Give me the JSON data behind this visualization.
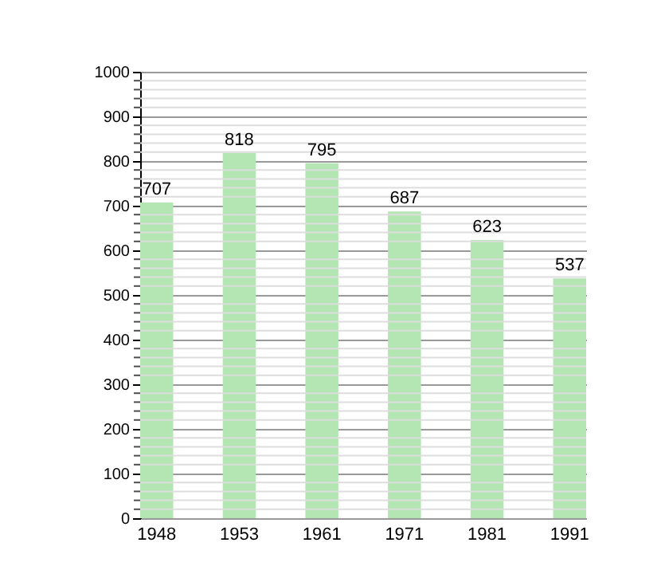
{
  "chart_data": {
    "type": "bar",
    "categories": [
      "1948",
      "1953",
      "1961",
      "1971",
      "1981",
      "1991"
    ],
    "values": [
      707,
      818,
      795,
      687,
      623,
      537
    ],
    "color": "#b3e6b3",
    "ylim": [
      0,
      1000
    ],
    "yticks": [
      0,
      100,
      200,
      300,
      400,
      500,
      600,
      700,
      800,
      900,
      1000
    ],
    "grid": true,
    "data_labels": true
  }
}
